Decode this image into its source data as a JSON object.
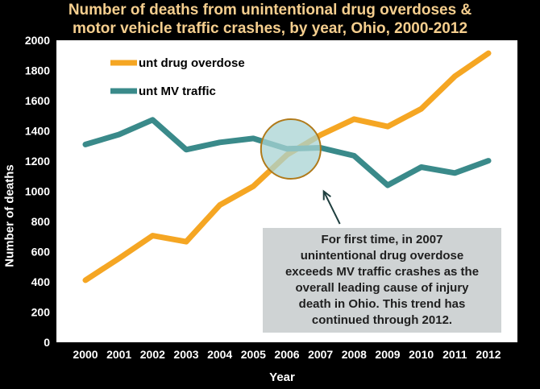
{
  "chart_data": {
    "type": "line",
    "title_lines": [
      "Number of deaths from unintentional drug overdoses &",
      "motor vehicle traffic crashes, by year, Ohio, 2000-2012"
    ],
    "xlabel": "Year",
    "ylabel": "Number of deaths",
    "categories": [
      "2000",
      "2001",
      "2002",
      "2003",
      "2004",
      "2005",
      "2006",
      "2007",
      "2008",
      "2009",
      "2010",
      "2011",
      "2012"
    ],
    "ylim": [
      0,
      2000
    ],
    "yticks": [
      0,
      200,
      400,
      600,
      800,
      1000,
      1200,
      1400,
      1600,
      1800,
      2000
    ],
    "grid": false,
    "legend_position": "top-left",
    "series": [
      {
        "name": "unt drug overdose",
        "color": "#f5a623",
        "values": [
          411,
          556,
          706,
          666,
          909,
          1033,
          1241,
          1373,
          1478,
          1429,
          1546,
          1761,
          1914
        ]
      },
      {
        "name": "unt MV traffic",
        "color": "#3a8a8a",
        "values": [
          1310,
          1376,
          1473,
          1276,
          1324,
          1350,
          1281,
          1288,
          1235,
          1040,
          1160,
          1121,
          1202
        ]
      }
    ],
    "annotation": {
      "text_lines": [
        "For first time, in 2007",
        "unintentional drug overdose",
        "exceeds MV traffic crashes  as the",
        "overall leading cause of injury",
        "death in Ohio.  This trend has",
        "continued through 2012."
      ],
      "highlight_category": "2006",
      "highlight_y": 1280,
      "arrow_target_category": "2007",
      "arrow_target_y": 1000
    }
  },
  "colors": {
    "background": "#000000",
    "plot_area": "#ffffff",
    "title": "#f5ce8e",
    "circle_fill": "#a8d3d3",
    "circle_stroke": "#b07a1a",
    "arrow": "#1f3f3f",
    "annotation_box": "#cfd3d4"
  }
}
